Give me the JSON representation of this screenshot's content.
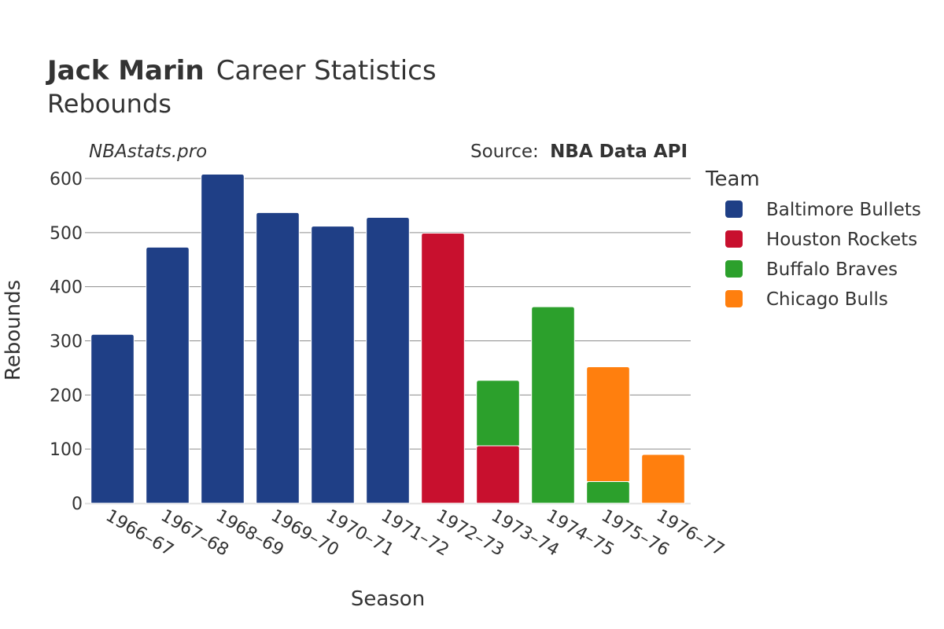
{
  "title": {
    "name": "Jack Marin",
    "rest": "Career Statistics",
    "subtitle": "Rebounds"
  },
  "credit": "NBAstats.pro",
  "source": {
    "prefix": "Source:",
    "name": "NBA Data API"
  },
  "legend": {
    "title": "Team"
  },
  "chart_data": {
    "type": "bar",
    "stacked": true,
    "title": "Jack Marin Career Statistics — Rebounds",
    "xlabel": "Season",
    "ylabel": "Rebounds",
    "ylim": [
      0,
      620
    ],
    "yticks": [
      0,
      100,
      200,
      300,
      400,
      500,
      600
    ],
    "categories": [
      "1966–67",
      "1967–68",
      "1968–69",
      "1969–70",
      "1970–71",
      "1971–72",
      "1972–73",
      "1973–74",
      "1974–75",
      "1975–76",
      "1976–77"
    ],
    "legend_position": "right",
    "series": [
      {
        "name": "Baltimore Bullets",
        "color": "#1f3f86",
        "values": [
          312,
          473,
          608,
          537,
          512,
          528,
          0,
          0,
          0,
          0,
          0
        ]
      },
      {
        "name": "Houston Rockets",
        "color": "#c8102e",
        "values": [
          0,
          0,
          0,
          0,
          0,
          0,
          499,
          106,
          0,
          0,
          0
        ]
      },
      {
        "name": "Buffalo Braves",
        "color": "#2ca02c",
        "values": [
          0,
          0,
          0,
          0,
          0,
          0,
          0,
          121,
          363,
          40,
          0
        ]
      },
      {
        "name": "Chicago Bulls",
        "color": "#ff7f0e",
        "values": [
          0,
          0,
          0,
          0,
          0,
          0,
          0,
          0,
          0,
          212,
          90
        ]
      }
    ]
  }
}
